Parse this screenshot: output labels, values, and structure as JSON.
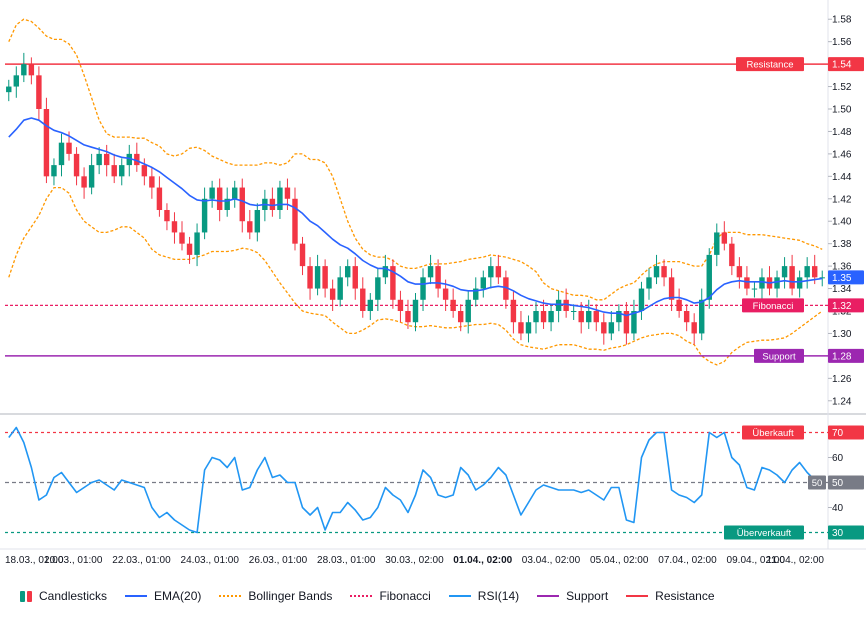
{
  "chart_data": {
    "type": "candlestick",
    "price_axis": {
      "ticks": [
        "1.58",
        "1.56",
        "1.54",
        "1.52",
        "1.50",
        "1.48",
        "1.46",
        "1.44",
        "1.42",
        "1.40",
        "1.38",
        "1.36",
        "1.34",
        "1.32",
        "1.30",
        "1.28",
        "1.26",
        "1.24"
      ],
      "ylim": [
        1.23,
        1.59
      ]
    },
    "rsi_axis": {
      "ticks": [
        "60",
        "40"
      ],
      "ylim": [
        25,
        75
      ]
    },
    "time_axis": {
      "labels": [
        "18.03., 01:00",
        "20.03., 01:00",
        "22.03., 01:00",
        "24.03., 01:00",
        "26.03., 01:00",
        "28.03., 01:00",
        "30.03., 02:00",
        "01.04., 02:00",
        "03.04., 02:00",
        "05.04., 02:00",
        "07.04., 02:00",
        "09.04., 02:00",
        "11.04., 02:00"
      ],
      "bold_label": "01.04., 02:00"
    },
    "levels": {
      "resistance": {
        "label": "Resistance",
        "value_label": "1.54",
        "value": 1.54,
        "color": "#f23645"
      },
      "support": {
        "label": "Support",
        "value_label": "1.28",
        "value": 1.28,
        "color": "#9c27b0"
      },
      "fibonacci": {
        "label": "Fibonacci",
        "value_label": "1.32",
        "value": 1.325,
        "color": "#e91e63"
      },
      "last_price": {
        "value_label": "1.35",
        "value": 1.35,
        "color": "#2962ff"
      },
      "overbought": {
        "label": "Überkauft",
        "value_label": "70",
        "value": 70,
        "color": "#f23645"
      },
      "oversold": {
        "label": "Überverkauft",
        "value_label": "30",
        "value": 30,
        "color": "#089981"
      },
      "rsi_mid": {
        "value_label": "50",
        "value": 50,
        "color": "#787b86"
      }
    },
    "series": {
      "close": [
        1.52,
        1.53,
        1.54,
        1.53,
        1.5,
        1.44,
        1.45,
        1.47,
        1.46,
        1.44,
        1.43,
        1.45,
        1.46,
        1.45,
        1.44,
        1.45,
        1.46,
        1.45,
        1.44,
        1.43,
        1.41,
        1.4,
        1.39,
        1.38,
        1.37,
        1.39,
        1.42,
        1.43,
        1.41,
        1.42,
        1.43,
        1.4,
        1.39,
        1.41,
        1.42,
        1.41,
        1.43,
        1.42,
        1.38,
        1.36,
        1.34,
        1.36,
        1.34,
        1.33,
        1.35,
        1.36,
        1.34,
        1.32,
        1.33,
        1.35,
        1.36,
        1.33,
        1.32,
        1.31,
        1.33,
        1.35,
        1.36,
        1.34,
        1.33,
        1.32,
        1.31,
        1.33,
        1.34,
        1.35,
        1.36,
        1.35,
        1.33,
        1.31,
        1.3,
        1.31,
        1.32,
        1.31,
        1.32,
        1.33,
        1.32,
        1.32,
        1.31,
        1.32,
        1.31,
        1.3,
        1.31,
        1.32,
        1.3,
        1.32,
        1.34,
        1.35,
        1.36,
        1.35,
        1.33,
        1.32,
        1.31,
        1.3,
        1.33,
        1.37,
        1.39,
        1.38,
        1.36,
        1.35,
        1.34,
        1.34,
        1.35,
        1.34,
        1.35,
        1.36,
        1.34,
        1.35,
        1.36,
        1.35,
        1.35
      ],
      "ema20": [
        1.475,
        1.482,
        1.49,
        1.492,
        1.49,
        1.485,
        1.481,
        1.479,
        1.476,
        1.472,
        1.468,
        1.466,
        1.464,
        1.462,
        1.459,
        1.457,
        1.456,
        1.454,
        1.451,
        1.448,
        1.444,
        1.439,
        1.434,
        1.429,
        1.423,
        1.419,
        1.418,
        1.419,
        1.418,
        1.418,
        1.42,
        1.418,
        1.415,
        1.414,
        1.415,
        1.414,
        1.415,
        1.415,
        1.412,
        1.407,
        1.4,
        1.396,
        1.39,
        1.384,
        1.379,
        1.376,
        1.371,
        1.365,
        1.361,
        1.358,
        1.358,
        1.355,
        1.351,
        1.346,
        1.344,
        1.344,
        1.345,
        1.345,
        1.344,
        1.342,
        1.339,
        1.338,
        1.338,
        1.339,
        1.341,
        1.342,
        1.341,
        1.338,
        1.334,
        1.331,
        1.329,
        1.327,
        1.326,
        1.326,
        1.326,
        1.325,
        1.324,
        1.323,
        1.321,
        1.319,
        1.318,
        1.318,
        1.316,
        1.318,
        1.32,
        1.324,
        1.328,
        1.331,
        1.332,
        1.332,
        1.33,
        1.327,
        1.328,
        1.332,
        1.339,
        1.344,
        1.346,
        1.347,
        1.346,
        1.346,
        1.346,
        1.345,
        1.346,
        1.347,
        1.346,
        1.346,
        1.347,
        1.348,
        1.349
      ],
      "bb_upper": [
        1.56,
        1.575,
        1.58,
        1.578,
        1.572,
        1.565,
        1.562,
        1.562,
        1.558,
        1.548,
        1.53,
        1.51,
        1.49,
        1.478,
        1.475,
        1.475,
        1.475,
        1.474,
        1.474,
        1.47,
        1.467,
        1.46,
        1.458,
        1.46,
        1.465,
        1.466,
        1.463,
        1.458,
        1.455,
        1.452,
        1.45,
        1.45,
        1.45,
        1.45,
        1.452,
        1.452,
        1.45,
        1.452,
        1.46,
        1.46,
        1.455,
        1.455,
        1.452,
        1.44,
        1.42,
        1.4,
        1.385,
        1.375,
        1.37,
        1.368,
        1.368,
        1.365,
        1.36,
        1.358,
        1.358,
        1.36,
        1.362,
        1.362,
        1.362,
        1.363,
        1.364,
        1.366,
        1.367,
        1.368,
        1.37,
        1.369,
        1.368,
        1.366,
        1.364,
        1.36,
        1.355,
        1.345,
        1.34,
        1.338,
        1.336,
        1.334,
        1.334,
        1.333,
        1.33,
        1.33,
        1.335,
        1.34,
        1.343,
        1.345,
        1.352,
        1.358,
        1.362,
        1.364,
        1.364,
        1.364,
        1.362,
        1.36,
        1.36,
        1.37,
        1.385,
        1.39,
        1.39,
        1.39,
        1.388,
        1.388,
        1.388,
        1.387,
        1.386,
        1.385,
        1.384,
        1.383,
        1.38,
        1.378,
        1.375
      ],
      "bb_lower": [
        1.35,
        1.37,
        1.385,
        1.395,
        1.405,
        1.42,
        1.43,
        1.43,
        1.425,
        1.41,
        1.4,
        1.395,
        1.39,
        1.39,
        1.392,
        1.395,
        1.395,
        1.39,
        1.385,
        1.375,
        1.37,
        1.368,
        1.366,
        1.366,
        1.366,
        1.368,
        1.37,
        1.373,
        1.373,
        1.373,
        1.374,
        1.376,
        1.375,
        1.372,
        1.365,
        1.355,
        1.345,
        1.336,
        1.327,
        1.32,
        1.318,
        1.317,
        1.316,
        1.31,
        1.305,
        1.3,
        1.3,
        1.303,
        1.307,
        1.312,
        1.313,
        1.312,
        1.31,
        1.307,
        1.306,
        1.306,
        1.307,
        1.306,
        1.305,
        1.305,
        1.306,
        1.307,
        1.308,
        1.308,
        1.309,
        1.308,
        1.303,
        1.295,
        1.29,
        1.288,
        1.287,
        1.286,
        1.288,
        1.29,
        1.29,
        1.29,
        1.288,
        1.286,
        1.286,
        1.285,
        1.287,
        1.288,
        1.29,
        1.293,
        1.296,
        1.298,
        1.299,
        1.3,
        1.3,
        1.298,
        1.293,
        1.29,
        1.28,
        1.275,
        1.272,
        1.275,
        1.283,
        1.288,
        1.292,
        1.293,
        1.294,
        1.294,
        1.295,
        1.296,
        1.3,
        1.305,
        1.31,
        1.315,
        1.32
      ],
      "rsi14": [
        68,
        72,
        66,
        56,
        43,
        45,
        52,
        54,
        50,
        46,
        48,
        50,
        51,
        49,
        47,
        51,
        50,
        49,
        48,
        40,
        36,
        38,
        35,
        33,
        31,
        30,
        55,
        60,
        59,
        56,
        60,
        47,
        48,
        55,
        60,
        52,
        53,
        50,
        50,
        40,
        37,
        40,
        31,
        38,
        38,
        42,
        39,
        35,
        36,
        40,
        48,
        45,
        43,
        38,
        45,
        55,
        52,
        45,
        44,
        45,
        56,
        53,
        47,
        49,
        52,
        56,
        53,
        45,
        37,
        42,
        47,
        49,
        48,
        47,
        47,
        47,
        46,
        47,
        45,
        43,
        48,
        48,
        35,
        34,
        60,
        67,
        70,
        70,
        47,
        45,
        44,
        42,
        45,
        70,
        68,
        70,
        60,
        57,
        48,
        47,
        56,
        55,
        53,
        50,
        55,
        58,
        54,
        51,
        52
      ]
    },
    "legend": [
      "Candlesticks",
      "EMA(20)",
      "Bollinger Bands",
      "Fibonacci",
      "RSI(14)",
      "Support",
      "Resistance"
    ],
    "colors": {
      "up": "#089981",
      "down": "#f23645",
      "ema": "#2962ff",
      "bb": "#ff9800",
      "rsi": "#2196f3",
      "support": "#9c27b0",
      "resistance": "#f23645",
      "fib": "#e91e63",
      "grid": "#e0e3eb",
      "text": "#131722"
    }
  }
}
